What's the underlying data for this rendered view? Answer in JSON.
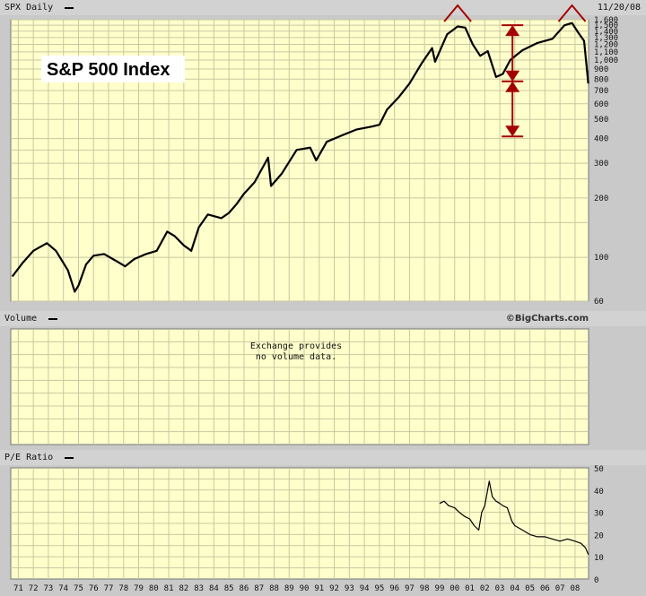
{
  "price_panel": {
    "title": "SPX Daily",
    "date": "11/20/08",
    "annotation": "S&P 500 Index"
  },
  "volume_panel": {
    "title": "Volume",
    "credit": "©BigCharts.com",
    "message_line1": "Exchange provides",
    "message_line2": "no volume data."
  },
  "pe_panel": {
    "title": "P/E Ratio"
  },
  "colors": {
    "grid_bg": "#ffffcc",
    "grid_line": "#c8c8a0",
    "marker": "#a50000",
    "line": "#000000"
  },
  "chart_data": [
    {
      "type": "line",
      "title": "SPX Daily",
      "yscale": "log",
      "y_ticks": [
        60,
        100,
        200,
        300,
        400,
        500,
        600,
        700,
        800,
        900,
        1000,
        1100,
        1200,
        1300,
        1400,
        1500,
        1600
      ],
      "y_tick_labels": [
        "60",
        "100",
        "200",
        "300",
        "400",
        "500",
        "600",
        "700",
        "800",
        "900",
        "1,000",
        "1,100",
        "1,200",
        "1,300",
        "1,400",
        "1,500",
        "1,600"
      ],
      "ylim": [
        60,
        1600
      ],
      "x": [
        1970.6,
        1971.3,
        1972.0,
        1972.9,
        1973.5,
        1974.3,
        1974.75,
        1975.0,
        1975.5,
        1976.0,
        1976.7,
        1977.5,
        1978.1,
        1978.7,
        1979.5,
        1980.2,
        1980.9,
        1981.4,
        1982.0,
        1982.5,
        1983.0,
        1983.6,
        1984.5,
        1985.0,
        1985.5,
        1986.0,
        1986.7,
        1987.6,
        1987.8,
        1988.5,
        1989.5,
        1990.4,
        1990.8,
        1991.5,
        1992.5,
        1993.5,
        1994.5,
        1995.0,
        1995.5,
        1996.3,
        1997.0,
        1997.8,
        1998.5,
        1998.7,
        1999.5,
        2000.2,
        2000.7,
        2001.2,
        2001.7,
        2002.2,
        2002.75,
        2003.2,
        2003.7,
        2004.5,
        2005.5,
        2006.5,
        2007.3,
        2007.8,
        2008.2,
        2008.6,
        2008.88
      ],
      "series": [
        {
          "values": [
            80,
            94,
            108,
            118,
            108,
            86,
            67,
            72,
            92,
            102,
            104,
            96,
            90,
            98,
            104,
            108,
            135,
            128,
            115,
            108,
            142,
            165,
            158,
            168,
            186,
            210,
            240,
            320,
            230,
            265,
            350,
            360,
            310,
            385,
            415,
            445,
            460,
            470,
            560,
            650,
            760,
            960,
            1150,
            980,
            1350,
            1480,
            1460,
            1200,
            1050,
            1110,
            820,
            850,
            1000,
            1120,
            1220,
            1280,
            1500,
            1540,
            1380,
            1250,
            760
          ]
        }
      ]
    },
    {
      "type": "bar",
      "title": "Volume",
      "categories": [],
      "values": []
    },
    {
      "type": "line",
      "title": "P/E Ratio",
      "ylim": [
        0,
        50
      ],
      "y_ticks": [
        0,
        10,
        20,
        30,
        40,
        50
      ],
      "x": [
        1999.0,
        1999.3,
        1999.6,
        2000.0,
        2000.3,
        2000.7,
        2001.0,
        2001.3,
        2001.6,
        2001.8,
        2002.0,
        2002.3,
        2002.5,
        2002.75,
        2003.0,
        2003.2,
        2003.5,
        2003.8,
        2004.0,
        2004.5,
        2005.0,
        2005.5,
        2006.0,
        2006.5,
        2007.0,
        2007.5,
        2008.0,
        2008.4,
        2008.7,
        2008.88
      ],
      "series": [
        {
          "values": [
            34,
            35,
            33,
            32,
            30,
            28,
            27,
            24,
            22,
            30,
            33,
            44,
            37,
            35,
            34,
            33,
            32,
            26,
            24,
            22,
            20,
            19,
            19,
            18,
            17,
            18,
            17,
            16,
            14,
            11
          ]
        }
      ]
    }
  ],
  "x_axis_labels": [
    "71",
    "72",
    "73",
    "74",
    "75",
    "76",
    "77",
    "78",
    "79",
    "80",
    "81",
    "82",
    "83",
    "84",
    "85",
    "86",
    "87",
    "88",
    "89",
    "90",
    "91",
    "92",
    "93",
    "94",
    "95",
    "96",
    "97",
    "98",
    "99",
    "00",
    "01",
    "02",
    "03",
    "04",
    "05",
    "06",
    "07",
    "08"
  ]
}
